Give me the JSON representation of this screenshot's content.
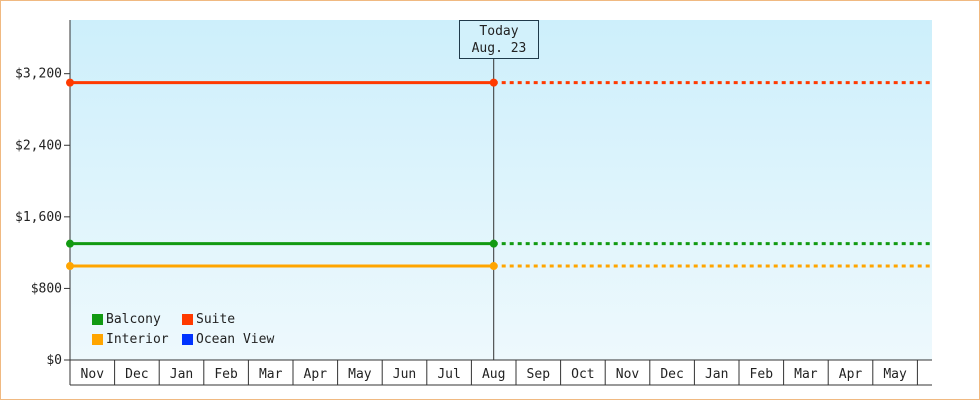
{
  "chart_data": {
    "type": "line",
    "x": [
      "Nov",
      "Dec",
      "Jan",
      "Feb",
      "Mar",
      "Apr",
      "May",
      "Jun",
      "Jul",
      "Aug",
      "Sep",
      "Oct",
      "Nov",
      "Dec",
      "Jan",
      "Feb",
      "Mar",
      "Apr",
      "May"
    ],
    "today_index": 9,
    "today_label": "Today",
    "today_date": "Aug. 23",
    "ylim": [
      0,
      3800
    ],
    "y_ticks": [
      0,
      800,
      1600,
      2400,
      3200
    ],
    "y_tick_labels": [
      "$0",
      "$800",
      "$1,600",
      "$2,400",
      "$3,200"
    ],
    "series": [
      {
        "name": "Balcony",
        "color": "#129a12",
        "value": 1300,
        "start_index": 0,
        "end_index": 9
      },
      {
        "name": "Suite",
        "color": "#ff3a00",
        "value": 3100,
        "start_index": 0,
        "end_index": 9
      },
      {
        "name": "Interior",
        "color": "#ffa500",
        "value": 1050,
        "start_index": 0,
        "end_index": 9
      },
      {
        "name": "Ocean View",
        "color": "#0033ff",
        "value": null,
        "start_index": null,
        "end_index": null
      }
    ],
    "projection": "dashed",
    "legend_position": "bottom-left",
    "background_gradient": [
      "#cdeffb",
      "#eef9fd"
    ]
  }
}
